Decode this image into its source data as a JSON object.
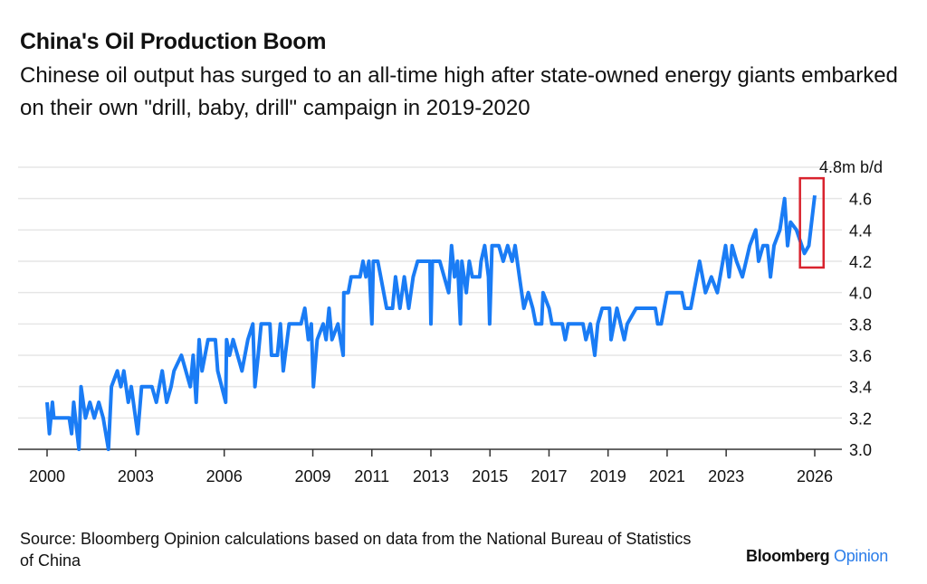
{
  "header": {
    "title": "China's Oil Production Boom",
    "subtitle": "Chinese oil output has surged to an all-time high after state-owned energy giants embarked on their own \"drill, baby, drill\" campaign in 2019-2020"
  },
  "footer": {
    "source": "Source: Bloomberg Opinion calculations based on data from the National Bureau of Statistics of China",
    "logo_brand": "Bloomberg",
    "logo_product": "Opinion"
  },
  "colors": {
    "line": "#1a7cf5",
    "highlight_box": "#d9232e",
    "grid": "#e6e6e6",
    "logo_accent": "#2b7de9"
  },
  "chart_data": {
    "type": "line",
    "title": "China's Oil Production Boom",
    "unit_label": "4.8m b/d",
    "xlim": [
      2000,
      2026
    ],
    "ylim": [
      3.0,
      4.8
    ],
    "y_axis_side": "right",
    "grid": true,
    "x_ticks": [
      "2000",
      "2003",
      "2006",
      "2009",
      "2011",
      "2013",
      "2015",
      "2017",
      "2019",
      "2021",
      "2023",
      "2026"
    ],
    "y_ticks": [
      "3.0",
      "3.2",
      "3.4",
      "3.6",
      "3.8",
      "4.0",
      "4.2",
      "4.4",
      "4.6"
    ],
    "highlight_box": {
      "x": [
        2025.5,
        2026.3
      ],
      "y": [
        4.16,
        4.73
      ],
      "color": "#d9232e"
    },
    "series": [
      {
        "color": "#1a7cf5",
        "points": [
          [
            2000.0,
            3.3
          ],
          [
            2000.08,
            3.1
          ],
          [
            2000.18,
            3.3
          ],
          [
            2000.23,
            3.2
          ],
          [
            2000.75,
            3.2
          ],
          [
            2000.83,
            3.1
          ],
          [
            2000.9,
            3.3
          ],
          [
            2001.08,
            3.0
          ],
          [
            2001.15,
            3.4
          ],
          [
            2001.3,
            3.2
          ],
          [
            2001.45,
            3.3
          ],
          [
            2001.6,
            3.2
          ],
          [
            2001.75,
            3.3
          ],
          [
            2001.9,
            3.2
          ],
          [
            2002.08,
            3.0
          ],
          [
            2002.18,
            3.4
          ],
          [
            2002.38,
            3.5
          ],
          [
            2002.5,
            3.4
          ],
          [
            2002.6,
            3.5
          ],
          [
            2002.75,
            3.3
          ],
          [
            2002.85,
            3.4
          ],
          [
            2003.07,
            3.1
          ],
          [
            2003.2,
            3.4
          ],
          [
            2003.55,
            3.4
          ],
          [
            2003.7,
            3.3
          ],
          [
            2003.9,
            3.5
          ],
          [
            2004.05,
            3.3
          ],
          [
            2004.2,
            3.4
          ],
          [
            2004.3,
            3.5
          ],
          [
            2004.55,
            3.6
          ],
          [
            2004.7,
            3.5
          ],
          [
            2004.85,
            3.4
          ],
          [
            2004.95,
            3.6
          ],
          [
            2005.05,
            3.3
          ],
          [
            2005.15,
            3.7
          ],
          [
            2005.25,
            3.5
          ],
          [
            2005.45,
            3.7
          ],
          [
            2005.7,
            3.7
          ],
          [
            2005.78,
            3.5
          ],
          [
            2006.05,
            3.3
          ],
          [
            2006.08,
            3.7
          ],
          [
            2006.18,
            3.6
          ],
          [
            2006.3,
            3.7
          ],
          [
            2006.6,
            3.5
          ],
          [
            2006.8,
            3.7
          ],
          [
            2006.97,
            3.8
          ],
          [
            2007.04,
            3.4
          ],
          [
            2007.15,
            3.6
          ],
          [
            2007.25,
            3.8
          ],
          [
            2007.55,
            3.8
          ],
          [
            2007.6,
            3.6
          ],
          [
            2007.8,
            3.6
          ],
          [
            2007.9,
            3.8
          ],
          [
            2008.0,
            3.5
          ],
          [
            2008.2,
            3.8
          ],
          [
            2008.6,
            3.8
          ],
          [
            2008.73,
            3.9
          ],
          [
            2008.85,
            3.7
          ],
          [
            2008.95,
            3.8
          ],
          [
            2009.02,
            3.4
          ],
          [
            2009.15,
            3.7
          ],
          [
            2009.35,
            3.8
          ],
          [
            2009.45,
            3.7
          ],
          [
            2009.55,
            3.9
          ],
          [
            2009.65,
            3.7
          ],
          [
            2009.85,
            3.8
          ],
          [
            2010.03,
            3.6
          ],
          [
            2010.05,
            4.0
          ],
          [
            2010.2,
            4.0
          ],
          [
            2010.3,
            4.1
          ],
          [
            2010.6,
            4.1
          ],
          [
            2010.7,
            4.2
          ],
          [
            2010.8,
            4.1
          ],
          [
            2010.9,
            4.2
          ],
          [
            2011.0,
            3.8
          ],
          [
            2011.05,
            4.2
          ],
          [
            2011.2,
            4.2
          ],
          [
            2011.3,
            4.1
          ],
          [
            2011.5,
            3.9
          ],
          [
            2011.7,
            3.9
          ],
          [
            2011.8,
            4.1
          ],
          [
            2011.95,
            3.9
          ],
          [
            2012.1,
            4.1
          ],
          [
            2012.25,
            3.9
          ],
          [
            2012.4,
            4.1
          ],
          [
            2012.55,
            4.2
          ],
          [
            2012.97,
            4.2
          ],
          [
            2013.0,
            3.8
          ],
          [
            2013.05,
            4.2
          ],
          [
            2013.3,
            4.2
          ],
          [
            2013.45,
            4.1
          ],
          [
            2013.6,
            4.0
          ],
          [
            2013.7,
            4.3
          ],
          [
            2013.8,
            4.1
          ],
          [
            2013.9,
            4.2
          ],
          [
            2014.0,
            3.8
          ],
          [
            2014.05,
            4.2
          ],
          [
            2014.2,
            4.0
          ],
          [
            2014.3,
            4.2
          ],
          [
            2014.4,
            4.1
          ],
          [
            2014.65,
            4.1
          ],
          [
            2014.7,
            4.2
          ],
          [
            2014.82,
            4.3
          ],
          [
            2014.95,
            4.1
          ],
          [
            2014.99,
            3.8
          ],
          [
            2015.07,
            4.3
          ],
          [
            2015.3,
            4.3
          ],
          [
            2015.45,
            4.2
          ],
          [
            2015.6,
            4.3
          ],
          [
            2015.75,
            4.2
          ],
          [
            2015.85,
            4.3
          ],
          [
            2016.0,
            4.1
          ],
          [
            2016.15,
            3.9
          ],
          [
            2016.3,
            4.0
          ],
          [
            2016.45,
            3.9
          ],
          [
            2016.55,
            3.8
          ],
          [
            2016.75,
            3.8
          ],
          [
            2016.8,
            4.0
          ],
          [
            2017.0,
            3.9
          ],
          [
            2017.1,
            3.8
          ],
          [
            2017.45,
            3.8
          ],
          [
            2017.55,
            3.7
          ],
          [
            2017.65,
            3.8
          ],
          [
            2018.15,
            3.8
          ],
          [
            2018.25,
            3.7
          ],
          [
            2018.4,
            3.8
          ],
          [
            2018.55,
            3.6
          ],
          [
            2018.65,
            3.8
          ],
          [
            2018.8,
            3.9
          ],
          [
            2019.05,
            3.9
          ],
          [
            2019.1,
            3.7
          ],
          [
            2019.3,
            3.9
          ],
          [
            2019.55,
            3.7
          ],
          [
            2019.65,
            3.8
          ],
          [
            2019.95,
            3.9
          ],
          [
            2020.6,
            3.9
          ],
          [
            2020.68,
            3.8
          ],
          [
            2020.8,
            3.8
          ],
          [
            2021.0,
            4.0
          ],
          [
            2021.5,
            4.0
          ],
          [
            2021.6,
            3.9
          ],
          [
            2021.8,
            3.9
          ],
          [
            2022.1,
            4.2
          ],
          [
            2022.3,
            4.0
          ],
          [
            2022.5,
            4.1
          ],
          [
            2022.7,
            4.0
          ],
          [
            2022.98,
            4.3
          ],
          [
            2023.1,
            4.1
          ],
          [
            2023.2,
            4.3
          ],
          [
            2023.35,
            4.2
          ],
          [
            2023.55,
            4.1
          ],
          [
            2023.8,
            4.3
          ],
          [
            2024.0,
            4.4
          ],
          [
            2024.1,
            4.2
          ],
          [
            2024.25,
            4.3
          ],
          [
            2024.4,
            4.3
          ],
          [
            2024.5,
            4.1
          ],
          [
            2024.62,
            4.3
          ],
          [
            2024.82,
            4.4
          ],
          [
            2024.98,
            4.6
          ],
          [
            2025.08,
            4.3
          ],
          [
            2025.18,
            4.45
          ],
          [
            2025.38,
            4.4
          ],
          [
            2025.65,
            4.25
          ],
          [
            2025.8,
            4.3
          ],
          [
            2026.0,
            4.62
          ]
        ]
      }
    ]
  }
}
